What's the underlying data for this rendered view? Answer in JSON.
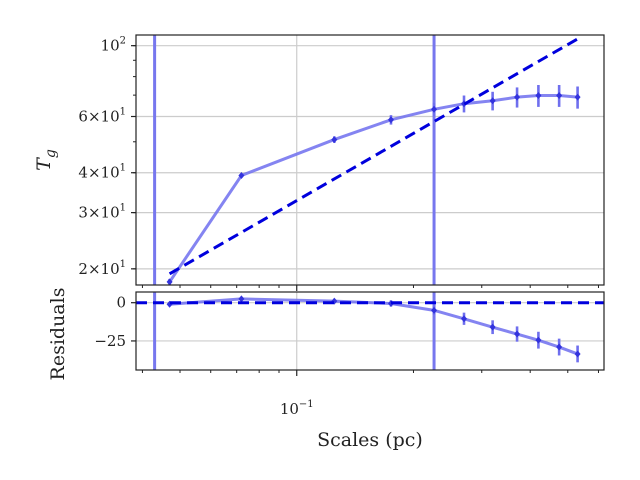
{
  "chart_data": [
    {
      "panel": "top",
      "type": "line",
      "ylabel": "T",
      "ylabel_sub": "g",
      "y_scale": "log",
      "x_scale": "log",
      "xlim": [
        0.0385,
        0.62
      ],
      "ylim": [
        17.8,
        108
      ],
      "grid": true,
      "yticks": [
        {
          "value": 100,
          "label": "10",
          "exp": "2"
        },
        {
          "value": 60,
          "label": "6×10",
          "exp": "1"
        },
        {
          "value": 40,
          "label": "4×10",
          "exp": "1"
        },
        {
          "value": 30,
          "label": "3×10",
          "exp": "1"
        },
        {
          "value": 20,
          "label": "2×10",
          "exp": "1"
        }
      ],
      "vlines": [
        0.043,
        0.226
      ],
      "series": [
        {
          "style": "data",
          "color": "#6f6fee",
          "x": [
            0.047,
            0.072,
            0.125,
            0.175,
            0.226,
            0.27,
            0.32,
            0.37,
            0.42,
            0.475,
            0.53
          ],
          "y": [
            18.2,
            39.2,
            50.8,
            58.6,
            63.2,
            65.8,
            67.2,
            69.0,
            69.8,
            69.8,
            69.0
          ],
          "yerr": [
            0.4,
            0.5,
            1.2,
            2.0,
            3.0,
            4.0,
            4.5,
            5.0,
            5.5,
            5.5,
            5.5
          ]
        },
        {
          "style": "model",
          "color": "#0000dd",
          "x": [
            0.047,
            0.53
          ],
          "y": [
            19.3,
            105
          ]
        }
      ]
    },
    {
      "panel": "bottom",
      "type": "line",
      "xlabel": "Scales (pc)",
      "ylabel": "Residuals",
      "x_scale": "log",
      "xlim": [
        0.0385,
        0.62
      ],
      "ylim": [
        -44,
        7
      ],
      "grid": true,
      "yticks": [
        {
          "value": 0,
          "label": "0"
        },
        {
          "value": -25,
          "label": "−25"
        }
      ],
      "xticks": [
        {
          "value": 0.1,
          "label": "10",
          "exp": "−1"
        }
      ],
      "vlines": [
        0.043,
        0.226
      ],
      "series": [
        {
          "style": "data",
          "color": "#6f6fee",
          "x": [
            0.047,
            0.072,
            0.125,
            0.175,
            0.226,
            0.27,
            0.32,
            0.37,
            0.42,
            0.475,
            0.53
          ],
          "y": [
            -1.0,
            2.5,
            1.0,
            -0.5,
            -5.0,
            -10.5,
            -16.0,
            -20.5,
            -24.5,
            -29.0,
            -33.5
          ],
          "yerr": [
            0.6,
            0.8,
            1.2,
            2.0,
            3.0,
            4.0,
            4.5,
            5.0,
            5.5,
            5.5,
            5.5
          ]
        },
        {
          "style": "model",
          "color": "#0000dd",
          "x": [
            0.0385,
            0.62
          ],
          "y": [
            0,
            0
          ]
        }
      ]
    }
  ]
}
